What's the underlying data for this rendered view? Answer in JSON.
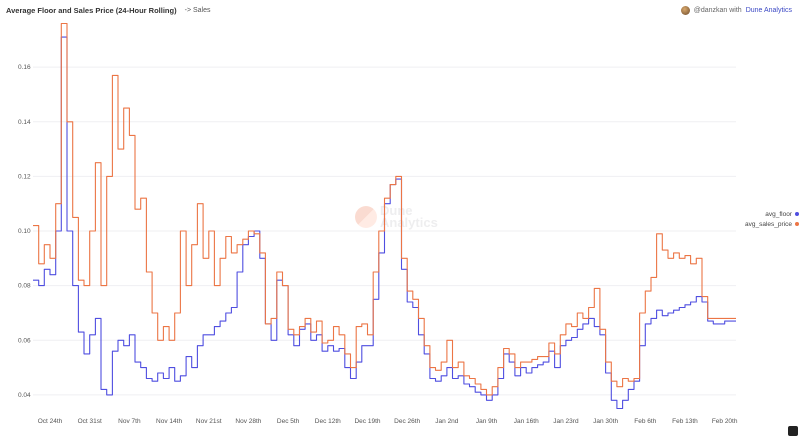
{
  "header": {
    "title": "Average Floor and Sales Price (24-Hour Rolling)",
    "subtitle": "-> Sales",
    "attribution_user": "@danzkan with",
    "attribution_link": "Dune Analytics"
  },
  "watermark": {
    "line1": "Dune",
    "line2": "Analytics"
  },
  "colors": {
    "avg_floor": "#4f4ee0",
    "avg_sales_price": "#ec7545",
    "grid": "#efeff2",
    "axis_text": "#555555"
  },
  "chart_data": {
    "type": "line",
    "title": "Average Floor and Sales Price (24-Hour Rolling)",
    "x_type": "date",
    "x_range": [
      "2021-10-21",
      "2022-02-22"
    ],
    "ylim": [
      0.033,
      0.178
    ],
    "y_ticks": [
      0.04,
      0.06,
      0.08,
      0.1,
      0.12,
      0.14,
      0.16
    ],
    "y_tick_labels": [
      "0.04",
      "0.06",
      "0.08",
      "0.10",
      "0.12",
      "0.14",
      "0.16"
    ],
    "x_ticks": [
      "2021-10-24",
      "2021-10-31",
      "2021-11-07",
      "2021-11-14",
      "2021-11-21",
      "2021-11-28",
      "2021-12-05",
      "2021-12-12",
      "2021-12-19",
      "2021-12-26",
      "2022-01-02",
      "2022-01-09",
      "2022-01-16",
      "2022-01-23",
      "2022-01-30",
      "2022-02-06",
      "2022-02-13",
      "2022-02-20"
    ],
    "x_tick_labels": [
      "Oct 24th",
      "Oct 31st",
      "Nov 7th",
      "Nov 14th",
      "Nov 21st",
      "Nov 28th",
      "Dec 5th",
      "Dec 12th",
      "Dec 19th",
      "Dec 26th",
      "Jan 2nd",
      "Jan 9th",
      "Jan 16th",
      "Jan 23rd",
      "Jan 30th",
      "Feb 6th",
      "Feb 13th",
      "Feb 20th"
    ],
    "grid": true,
    "legend_position": "right",
    "series": [
      {
        "name": "avg_floor",
        "points": [
          [
            "2021-10-21",
            0.082
          ],
          [
            "2021-10-22",
            0.08
          ],
          [
            "2021-10-23",
            0.086
          ],
          [
            "2021-10-24",
            0.084
          ],
          [
            "2021-10-25",
            0.1
          ],
          [
            "2021-10-26",
            0.171
          ],
          [
            "2021-10-27",
            0.1
          ],
          [
            "2021-10-28",
            0.08
          ],
          [
            "2021-10-29",
            0.063
          ],
          [
            "2021-10-30",
            0.055
          ],
          [
            "2021-10-31",
            0.062
          ],
          [
            "2021-11-01",
            0.068
          ],
          [
            "2021-11-02",
            0.042
          ],
          [
            "2021-11-03",
            0.04
          ],
          [
            "2021-11-04",
            0.056
          ],
          [
            "2021-11-05",
            0.06
          ],
          [
            "2021-11-06",
            0.058
          ],
          [
            "2021-11-07",
            0.062
          ],
          [
            "2021-11-08",
            0.052
          ],
          [
            "2021-11-09",
            0.05
          ],
          [
            "2021-11-10",
            0.046
          ],
          [
            "2021-11-11",
            0.045
          ],
          [
            "2021-11-12",
            0.048
          ],
          [
            "2021-11-13",
            0.046
          ],
          [
            "2021-11-14",
            0.05
          ],
          [
            "2021-11-15",
            0.045
          ],
          [
            "2021-11-16",
            0.047
          ],
          [
            "2021-11-17",
            0.054
          ],
          [
            "2021-11-18",
            0.05
          ],
          [
            "2021-11-19",
            0.058
          ],
          [
            "2021-11-20",
            0.062
          ],
          [
            "2021-11-21",
            0.062
          ],
          [
            "2021-11-22",
            0.065
          ],
          [
            "2021-11-23",
            0.067
          ],
          [
            "2021-11-24",
            0.07
          ],
          [
            "2021-11-25",
            0.072
          ],
          [
            "2021-11-26",
            0.085
          ],
          [
            "2021-11-27",
            0.095
          ],
          [
            "2021-11-28",
            0.098
          ],
          [
            "2021-11-29",
            0.1
          ],
          [
            "2021-11-30",
            0.09
          ],
          [
            "2021-12-01",
            0.066
          ],
          [
            "2021-12-02",
            0.06
          ],
          [
            "2021-12-03",
            0.082
          ],
          [
            "2021-12-04",
            0.08
          ],
          [
            "2021-12-05",
            0.062
          ],
          [
            "2021-12-06",
            0.058
          ],
          [
            "2021-12-07",
            0.064
          ],
          [
            "2021-12-08",
            0.066
          ],
          [
            "2021-12-09",
            0.06
          ],
          [
            "2021-12-10",
            0.062
          ],
          [
            "2021-12-11",
            0.056
          ],
          [
            "2021-12-12",
            0.058
          ],
          [
            "2021-12-13",
            0.056
          ],
          [
            "2021-12-14",
            0.057
          ],
          [
            "2021-12-15",
            0.05
          ],
          [
            "2021-12-16",
            0.046
          ],
          [
            "2021-12-17",
            0.052
          ],
          [
            "2021-12-18",
            0.058
          ],
          [
            "2021-12-19",
            0.058
          ],
          [
            "2021-12-20",
            0.075
          ],
          [
            "2021-12-21",
            0.092
          ],
          [
            "2021-12-22",
            0.11
          ],
          [
            "2021-12-23",
            0.117
          ],
          [
            "2021-12-24",
            0.119
          ],
          [
            "2021-12-25",
            0.086
          ],
          [
            "2021-12-26",
            0.074
          ],
          [
            "2021-12-27",
            0.072
          ],
          [
            "2021-12-28",
            0.062
          ],
          [
            "2021-12-29",
            0.055
          ],
          [
            "2021-12-30",
            0.046
          ],
          [
            "2021-12-31",
            0.045
          ],
          [
            "2022-01-01",
            0.047
          ],
          [
            "2022-01-02",
            0.05
          ],
          [
            "2022-01-03",
            0.046
          ],
          [
            "2022-01-04",
            0.047
          ],
          [
            "2022-01-05",
            0.044
          ],
          [
            "2022-01-06",
            0.043
          ],
          [
            "2022-01-07",
            0.041
          ],
          [
            "2022-01-08",
            0.04
          ],
          [
            "2022-01-09",
            0.038
          ],
          [
            "2022-01-10",
            0.04
          ],
          [
            "2022-01-11",
            0.046
          ],
          [
            "2022-01-12",
            0.055
          ],
          [
            "2022-01-13",
            0.052
          ],
          [
            "2022-01-14",
            0.047
          ],
          [
            "2022-01-15",
            0.05
          ],
          [
            "2022-01-16",
            0.048
          ],
          [
            "2022-01-17",
            0.05
          ],
          [
            "2022-01-18",
            0.051
          ],
          [
            "2022-01-19",
            0.052
          ],
          [
            "2022-01-20",
            0.056
          ],
          [
            "2022-01-21",
            0.05
          ],
          [
            "2022-01-22",
            0.058
          ],
          [
            "2022-01-23",
            0.06
          ],
          [
            "2022-01-24",
            0.061
          ],
          [
            "2022-01-25",
            0.064
          ],
          [
            "2022-01-26",
            0.066
          ],
          [
            "2022-01-27",
            0.068
          ],
          [
            "2022-01-28",
            0.065
          ],
          [
            "2022-01-29",
            0.062
          ],
          [
            "2022-01-30",
            0.048
          ],
          [
            "2022-01-31",
            0.038
          ],
          [
            "2022-02-01",
            0.035
          ],
          [
            "2022-02-02",
            0.038
          ],
          [
            "2022-02-03",
            0.042
          ],
          [
            "2022-02-04",
            0.045
          ],
          [
            "2022-02-05",
            0.058
          ],
          [
            "2022-02-06",
            0.066
          ],
          [
            "2022-02-07",
            0.068
          ],
          [
            "2022-02-08",
            0.071
          ],
          [
            "2022-02-09",
            0.069
          ],
          [
            "2022-02-10",
            0.07
          ],
          [
            "2022-02-11",
            0.071
          ],
          [
            "2022-02-12",
            0.072
          ],
          [
            "2022-02-13",
            0.073
          ],
          [
            "2022-02-14",
            0.074
          ],
          [
            "2022-02-15",
            0.076
          ],
          [
            "2022-02-16",
            0.074
          ],
          [
            "2022-02-17",
            0.067
          ],
          [
            "2022-02-18",
            0.066
          ],
          [
            "2022-02-19",
            0.066
          ],
          [
            "2022-02-20",
            0.067
          ],
          [
            "2022-02-21",
            0.067
          ],
          [
            "2022-02-22",
            0.067
          ]
        ]
      },
      {
        "name": "avg_sales_price",
        "points": [
          [
            "2021-10-21",
            0.102
          ],
          [
            "2021-10-22",
            0.088
          ],
          [
            "2021-10-23",
            0.095
          ],
          [
            "2021-10-24",
            0.09
          ],
          [
            "2021-10-25",
            0.11
          ],
          [
            "2021-10-26",
            0.176
          ],
          [
            "2021-10-27",
            0.14
          ],
          [
            "2021-10-28",
            0.105
          ],
          [
            "2021-10-29",
            0.082
          ],
          [
            "2021-10-30",
            0.08
          ],
          [
            "2021-10-31",
            0.1
          ],
          [
            "2021-11-01",
            0.125
          ],
          [
            "2021-11-02",
            0.08
          ],
          [
            "2021-11-03",
            0.12
          ],
          [
            "2021-11-04",
            0.157
          ],
          [
            "2021-11-05",
            0.13
          ],
          [
            "2021-11-06",
            0.145
          ],
          [
            "2021-11-07",
            0.135
          ],
          [
            "2021-11-08",
            0.108
          ],
          [
            "2021-11-09",
            0.112
          ],
          [
            "2021-11-10",
            0.085
          ],
          [
            "2021-11-11",
            0.07
          ],
          [
            "2021-11-12",
            0.06
          ],
          [
            "2021-11-13",
            0.065
          ],
          [
            "2021-11-14",
            0.06
          ],
          [
            "2021-11-15",
            0.07
          ],
          [
            "2021-11-16",
            0.1
          ],
          [
            "2021-11-17",
            0.08
          ],
          [
            "2021-11-18",
            0.095
          ],
          [
            "2021-11-19",
            0.11
          ],
          [
            "2021-11-20",
            0.09
          ],
          [
            "2021-11-21",
            0.1
          ],
          [
            "2021-11-22",
            0.08
          ],
          [
            "2021-11-23",
            0.09
          ],
          [
            "2021-11-24",
            0.098
          ],
          [
            "2021-11-25",
            0.092
          ],
          [
            "2021-11-26",
            0.095
          ],
          [
            "2021-11-27",
            0.097
          ],
          [
            "2021-11-28",
            0.1
          ],
          [
            "2021-11-29",
            0.099
          ],
          [
            "2021-11-30",
            0.092
          ],
          [
            "2021-12-01",
            0.066
          ],
          [
            "2021-12-02",
            0.068
          ],
          [
            "2021-12-03",
            0.085
          ],
          [
            "2021-12-04",
            0.08
          ],
          [
            "2021-12-05",
            0.064
          ],
          [
            "2021-12-06",
            0.062
          ],
          [
            "2021-12-07",
            0.065
          ],
          [
            "2021-12-08",
            0.068
          ],
          [
            "2021-12-09",
            0.063
          ],
          [
            "2021-12-10",
            0.067
          ],
          [
            "2021-12-11",
            0.059
          ],
          [
            "2021-12-12",
            0.06
          ],
          [
            "2021-12-13",
            0.065
          ],
          [
            "2021-12-14",
            0.062
          ],
          [
            "2021-12-15",
            0.055
          ],
          [
            "2021-12-16",
            0.05
          ],
          [
            "2021-12-17",
            0.065
          ],
          [
            "2021-12-18",
            0.066
          ],
          [
            "2021-12-19",
            0.062
          ],
          [
            "2021-12-20",
            0.085
          ],
          [
            "2021-12-21",
            0.1
          ],
          [
            "2021-12-22",
            0.112
          ],
          [
            "2021-12-23",
            0.117
          ],
          [
            "2021-12-24",
            0.12
          ],
          [
            "2021-12-25",
            0.09
          ],
          [
            "2021-12-26",
            0.078
          ],
          [
            "2021-12-27",
            0.075
          ],
          [
            "2021-12-28",
            0.068
          ],
          [
            "2021-12-29",
            0.058
          ],
          [
            "2021-12-30",
            0.05
          ],
          [
            "2021-12-31",
            0.049
          ],
          [
            "2022-01-01",
            0.052
          ],
          [
            "2022-01-02",
            0.06
          ],
          [
            "2022-01-03",
            0.05
          ],
          [
            "2022-01-04",
            0.052
          ],
          [
            "2022-01-05",
            0.047
          ],
          [
            "2022-01-06",
            0.046
          ],
          [
            "2022-01-07",
            0.044
          ],
          [
            "2022-01-08",
            0.042
          ],
          [
            "2022-01-09",
            0.04
          ],
          [
            "2022-01-10",
            0.043
          ],
          [
            "2022-01-11",
            0.05
          ],
          [
            "2022-01-12",
            0.057
          ],
          [
            "2022-01-13",
            0.055
          ],
          [
            "2022-01-14",
            0.05
          ],
          [
            "2022-01-15",
            0.052
          ],
          [
            "2022-01-16",
            0.052
          ],
          [
            "2022-01-17",
            0.053
          ],
          [
            "2022-01-18",
            0.054
          ],
          [
            "2022-01-19",
            0.054
          ],
          [
            "2022-01-20",
            0.059
          ],
          [
            "2022-01-21",
            0.055
          ],
          [
            "2022-01-22",
            0.062
          ],
          [
            "2022-01-23",
            0.066
          ],
          [
            "2022-01-24",
            0.065
          ],
          [
            "2022-01-25",
            0.07
          ],
          [
            "2022-01-26",
            0.068
          ],
          [
            "2022-01-27",
            0.072
          ],
          [
            "2022-01-28",
            0.079
          ],
          [
            "2022-01-29",
            0.064
          ],
          [
            "2022-01-30",
            0.052
          ],
          [
            "2022-01-31",
            0.045
          ],
          [
            "2022-02-01",
            0.043
          ],
          [
            "2022-02-02",
            0.046
          ],
          [
            "2022-02-03",
            0.045
          ],
          [
            "2022-02-04",
            0.046
          ],
          [
            "2022-02-05",
            0.07
          ],
          [
            "2022-02-06",
            0.078
          ],
          [
            "2022-02-07",
            0.083
          ],
          [
            "2022-02-08",
            0.099
          ],
          [
            "2022-02-09",
            0.093
          ],
          [
            "2022-02-10",
            0.09
          ],
          [
            "2022-02-11",
            0.092
          ],
          [
            "2022-02-12",
            0.09
          ],
          [
            "2022-02-13",
            0.091
          ],
          [
            "2022-02-14",
            0.088
          ],
          [
            "2022-02-15",
            0.09
          ],
          [
            "2022-02-16",
            0.076
          ],
          [
            "2022-02-17",
            0.068
          ],
          [
            "2022-02-18",
            0.068
          ],
          [
            "2022-02-19",
            0.068
          ],
          [
            "2022-02-20",
            0.068
          ],
          [
            "2022-02-21",
            0.068
          ],
          [
            "2022-02-22",
            0.068
          ]
        ]
      }
    ]
  }
}
